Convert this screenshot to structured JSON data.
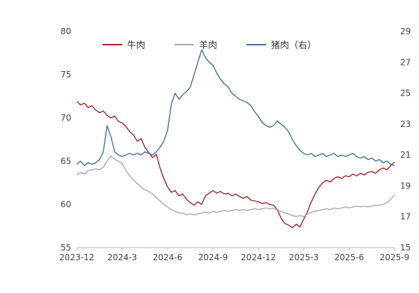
{
  "chart_data": {
    "type": "line",
    "title": "",
    "x_unit": "months since 2023-12",
    "x_step": 0.25,
    "x_tick_positions": [
      0,
      3,
      6,
      9,
      12,
      15,
      18,
      21
    ],
    "x_tick_labels": [
      "2023-12",
      "2024-3",
      "2024-6",
      "2024-9",
      "2024-12",
      "2025-3",
      "2025-6",
      "2025-9"
    ],
    "left_axis": {
      "min": 55,
      "max": 80,
      "ticks": [
        55,
        60,
        65,
        70,
        75,
        80
      ]
    },
    "right_axis": {
      "min": 15,
      "max": 29,
      "ticks": [
        15,
        17,
        19,
        21,
        23,
        25,
        27,
        29
      ]
    },
    "grid": false,
    "legend_position": "top-center",
    "series": [
      {
        "name": "牛肉",
        "axis": "left",
        "color": "#A3201F",
        "values": [
          71.9,
          71.5,
          71.7,
          71.2,
          71.4,
          70.9,
          70.6,
          70.8,
          70.3,
          70.0,
          70.2,
          69.6,
          69.4,
          69.0,
          68.4,
          68.0,
          67.3,
          67.6,
          66.6,
          66.0,
          65.4,
          65.8,
          64.2,
          63.0,
          62.0,
          61.4,
          61.6,
          61.0,
          61.2,
          60.6,
          60.2,
          59.9,
          60.3,
          60.0,
          61.0,
          61.3,
          61.6,
          61.3,
          61.5,
          61.2,
          61.3,
          61.0,
          61.2,
          60.9,
          60.7,
          60.9,
          60.5,
          60.4,
          60.3,
          60.1,
          60.2,
          60.0,
          59.9,
          59.4,
          58.4,
          57.8,
          57.6,
          57.3,
          57.7,
          57.4,
          58.3,
          59.2,
          60.3,
          61.2,
          62.0,
          62.5,
          62.8,
          62.6,
          63.0,
          63.2,
          63.0,
          63.3,
          63.2,
          63.5,
          63.3,
          63.6,
          63.4,
          63.7,
          63.8,
          63.6,
          64.0,
          64.2,
          64.0,
          64.5,
          64.9
        ]
      },
      {
        "name": "羊肉",
        "axis": "left",
        "color": "#A6A6A6",
        "values": [
          63.4,
          63.7,
          63.5,
          63.9,
          64.0,
          64.1,
          64.0,
          64.3,
          65.0,
          65.6,
          65.2,
          65.0,
          64.7,
          63.9,
          63.3,
          62.8,
          62.4,
          62.0,
          61.7,
          61.5,
          61.2,
          60.8,
          60.4,
          60.0,
          59.7,
          59.4,
          59.2,
          59.0,
          59.0,
          58.8,
          58.9,
          58.8,
          58.9,
          59.0,
          59.1,
          59.0,
          59.2,
          59.1,
          59.2,
          59.3,
          59.2,
          59.3,
          59.4,
          59.3,
          59.4,
          59.3,
          59.4,
          59.5,
          59.4,
          59.5,
          59.6,
          59.5,
          59.5,
          59.4,
          59.2,
          59.0,
          58.9,
          58.7,
          58.6,
          58.7,
          58.6,
          58.9,
          59.1,
          59.2,
          59.3,
          59.4,
          59.5,
          59.4,
          59.6,
          59.5,
          59.6,
          59.7,
          59.6,
          59.7,
          59.8,
          59.7,
          59.8,
          59.7,
          59.8,
          59.9,
          59.9,
          60.0,
          60.2,
          60.6,
          61.1
        ]
      },
      {
        "name": "猪肉（右）",
        "axis": "right",
        "color": "#3C6DA6",
        "values": [
          20.4,
          20.6,
          20.3,
          20.5,
          20.4,
          20.5,
          20.7,
          21.2,
          22.9,
          22.2,
          21.2,
          21.0,
          20.9,
          21.0,
          21.1,
          21.0,
          21.1,
          21.0,
          21.2,
          21.1,
          21.0,
          21.2,
          21.5,
          21.9,
          22.6,
          24.3,
          25.0,
          24.6,
          24.9,
          25.1,
          25.4,
          26.2,
          27.0,
          27.8,
          27.3,
          27.0,
          26.8,
          26.3,
          25.9,
          25.6,
          25.4,
          25.0,
          24.8,
          24.6,
          24.5,
          24.4,
          24.2,
          23.8,
          23.5,
          23.1,
          22.9,
          22.8,
          22.9,
          23.2,
          23.0,
          22.8,
          22.5,
          22.0,
          21.6,
          21.3,
          21.1,
          21.0,
          21.1,
          20.9,
          21.0,
          21.1,
          20.9,
          21.0,
          21.1,
          20.9,
          21.0,
          20.9,
          21.0,
          21.1,
          20.9,
          20.8,
          20.9,
          20.7,
          20.8,
          20.6,
          20.7,
          20.5,
          20.6,
          20.4,
          20.3
        ]
      }
    ]
  }
}
